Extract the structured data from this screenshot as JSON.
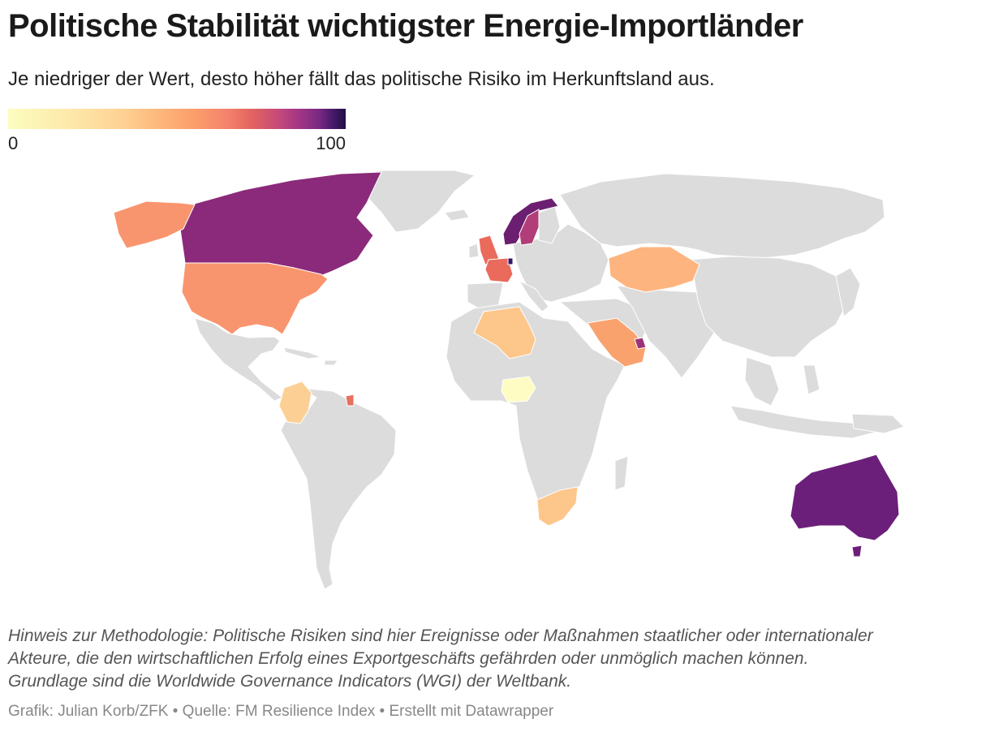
{
  "title": "Politische Stabilität wichtigster Energie-Importländer",
  "subtitle": "Je niedriger der Wert, desto höher fällt das politische Risiko im Herkunftsland aus.",
  "legend": {
    "min": "0",
    "max": "100",
    "scale": [
      "#fcfdbf",
      "#fdb77a",
      "#f4826c",
      "#c64a7a",
      "#7a2a83",
      "#1e0f44"
    ]
  },
  "note": [
    "Hinweis zur Methodologie: Politische Risiken sind hier Ereignisse oder Maßnahmen staatlicher oder internationaler",
    "Akteure, die den wirtschaftlichen Erfolg eines Exportgeschäfts gefährden oder unmöglich machen können.",
    "Grundlage sind die Worldwide Governance Indicators (WGI) der Weltbank."
  ],
  "footer": "Grafik: Julian Korb/ZFK • Quelle: FM Resilience Index • Erstellt mit Datawrapper",
  "colors": {
    "no_data": "#dcdcdc"
  },
  "regions": [
    {
      "name": "Kanada",
      "color": "#8b2a7a"
    },
    {
      "name": "Alaska",
      "color": "#f9956e"
    },
    {
      "name": "USA",
      "color": "#f9956e"
    },
    {
      "name": "Kolumbien",
      "color": "#fcd095"
    },
    {
      "name": "Französisch-Guayana",
      "color": "#e8705e"
    },
    {
      "name": "Norwegen",
      "color": "#6c1f70"
    },
    {
      "name": "Schweden",
      "color": "#b13e78"
    },
    {
      "name": "Vereinigtes Königreich",
      "color": "#ea6a5b"
    },
    {
      "name": "Frankreich",
      "color": "#ea6a5b"
    },
    {
      "name": "Niederlande",
      "color": "#3a1565"
    },
    {
      "name": "Algerien",
      "color": "#fdc68a"
    },
    {
      "name": "Nigeria",
      "color": "#fefcc2"
    },
    {
      "name": "Saudi-Arabien",
      "color": "#f9a26e"
    },
    {
      "name": "Vereinigte Arabische Emirate",
      "color": "#9c3379"
    },
    {
      "name": "Kasachstan",
      "color": "#fdb47e"
    },
    {
      "name": "Südafrika",
      "color": "#fdc68a"
    },
    {
      "name": "Australien",
      "color": "#6c1f7a"
    }
  ]
}
